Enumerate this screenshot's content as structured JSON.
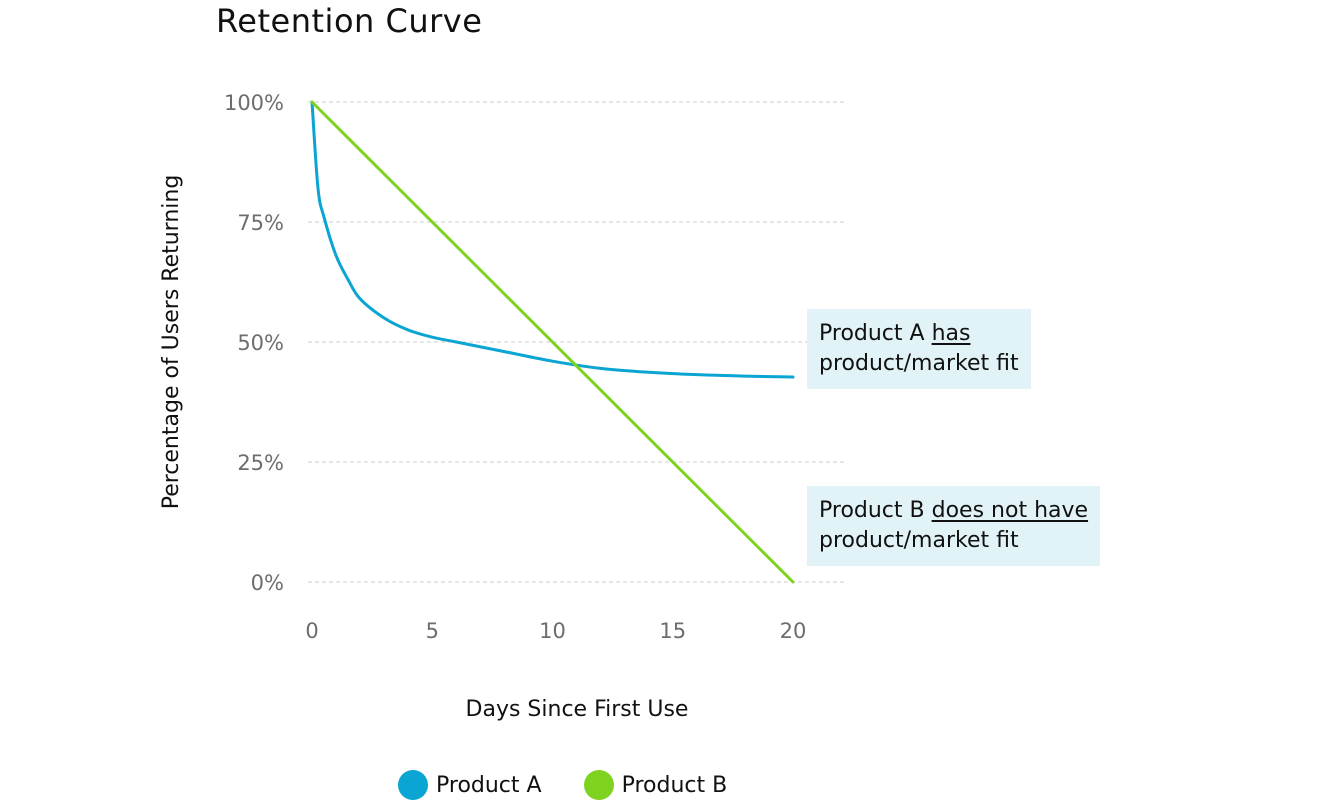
{
  "title": "Retention Curve",
  "colors": {
    "product_a": "#0aa5d2",
    "product_b": "#7ed321",
    "grid": "#cccccc",
    "annotation_bg": "#e2f3f8"
  },
  "annotations": {
    "a": {
      "pre": "Product A ",
      "em": "has",
      "line2": "product/market fit"
    },
    "b": {
      "pre": "Product B ",
      "em": "does not have",
      "line2": "product/market fit"
    }
  },
  "chart_data": {
    "type": "line",
    "title": "Retention Curve",
    "xlabel": "Days Since First Use",
    "ylabel": "Percentage of Users Returning",
    "xlim": [
      0,
      20
    ],
    "ylim": [
      0,
      100
    ],
    "x_ticks": [
      0,
      5,
      10,
      15,
      20
    ],
    "y_ticks": [
      0,
      25,
      50,
      75,
      100
    ],
    "y_tick_labels": [
      "0%",
      "25%",
      "50%",
      "75%",
      "100%"
    ],
    "grid": "horizontal dashed",
    "legend_position": "bottom",
    "series": [
      {
        "name": "Product A",
        "color": "#0aa5d2",
        "x": [
          0,
          0.25,
          0.5,
          1,
          1.5,
          2,
          3,
          4,
          5,
          6,
          8,
          10,
          12,
          14,
          16,
          18,
          20
        ],
        "y": [
          100,
          82,
          76,
          68,
          63,
          59,
          55,
          52.5,
          51,
          50,
          48,
          46,
          44.5,
          43.7,
          43.2,
          42.9,
          42.7
        ]
      },
      {
        "name": "Product B",
        "color": "#7ed321",
        "x": [
          0,
          20
        ],
        "y": [
          100,
          0
        ]
      }
    ]
  }
}
